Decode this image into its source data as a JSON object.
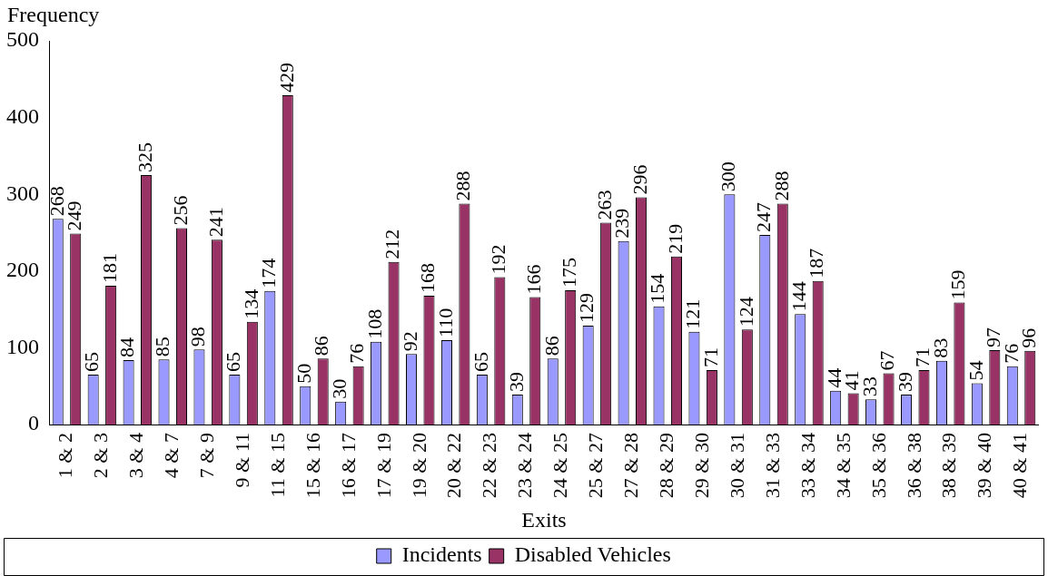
{
  "chart_data": {
    "type": "bar",
    "xlabel": "Exits",
    "ylabel": "Frequency",
    "categories": [
      "1 & 2",
      "2 & 3",
      "3 & 4",
      "4 & 7",
      "7 & 9",
      "9 & 11",
      "11 & 15",
      "15 & 16",
      "16 & 17",
      "17 & 19",
      "19 & 20",
      "20 & 22",
      "22 & 23",
      "23 & 24",
      "24 & 25",
      "25 & 27",
      "27 & 28",
      "28 & 29",
      "29 & 30",
      "30 & 31",
      "31 & 33",
      "33 & 34",
      "34 & 35",
      "35 & 36",
      "36 & 38",
      "38 & 39",
      "39 & 40",
      "40 & 41"
    ],
    "series": [
      {
        "name": "Incidents",
        "color": "#9999ff",
        "values": [
          268,
          65,
          84,
          85,
          98,
          65,
          174,
          50,
          30,
          108,
          92,
          110,
          65,
          39,
          86,
          129,
          239,
          154,
          121,
          300,
          247,
          144,
          44,
          33,
          39,
          83,
          54,
          76
        ]
      },
      {
        "name": "Disabled Vehicles",
        "color": "#993366",
        "values": [
          249,
          181,
          325,
          256,
          241,
          134,
          429,
          86,
          76,
          212,
          168,
          288,
          192,
          166,
          175,
          263,
          296,
          219,
          71,
          124,
          288,
          187,
          41,
          67,
          71,
          159,
          97,
          96
        ]
      }
    ],
    "ylim": [
      0,
      500
    ],
    "yticks": [
      0,
      100,
      200,
      300,
      400,
      500
    ],
    "grid": false,
    "legend": "bottom",
    "data_labels": true
  }
}
